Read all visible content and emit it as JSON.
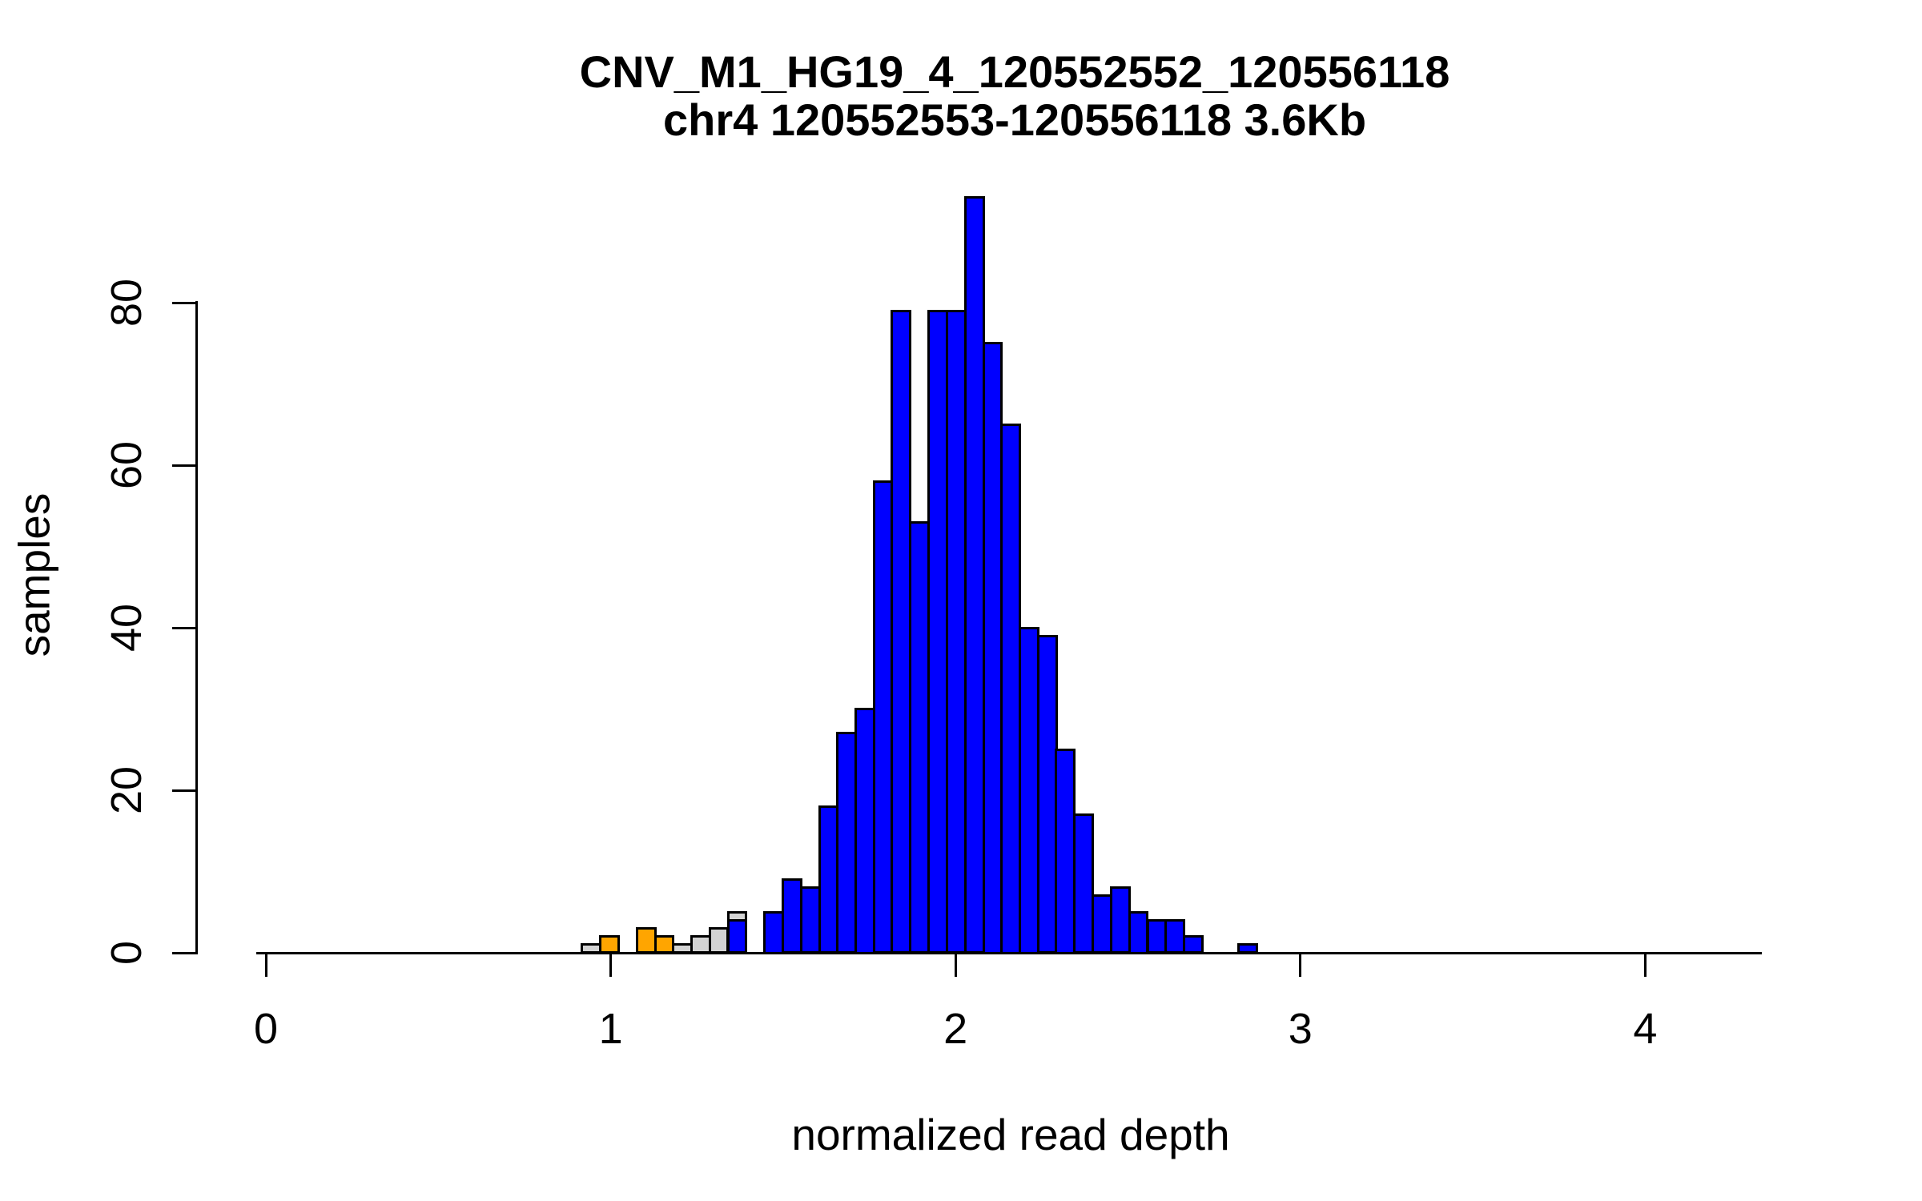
{
  "figure": {
    "title_line1": "CNV_M1_HG19_4_120552552_120556118",
    "title_line2": "chr4 120552553-120556118 3.6Kb"
  },
  "chart_data": {
    "type": "bar",
    "subtype": "stacked-histogram",
    "title": "CNV_M1_HG19_4_120552552_120556118",
    "subtitle": "chr4 120552553-120556118 3.6Kb",
    "xlabel": "normalized read depth",
    "ylabel": "samples",
    "x_ticks": [
      0,
      1,
      2,
      3,
      4
    ],
    "y_ticks": [
      0,
      20,
      40,
      60,
      80
    ],
    "xlim": [
      -0.03,
      4.34
    ],
    "ylim": [
      0,
      93
    ],
    "grid": false,
    "legend": false,
    "bin_width": 0.053,
    "series_colors": {
      "blue": "#0000FF",
      "orange": "#FFA500",
      "gray": "#D3D3D3"
    },
    "bar_border_color": "#000000",
    "bins": [
      {
        "start": 0.917,
        "segments": [
          {
            "color": "gray",
            "count": 1
          }
        ]
      },
      {
        "start": 0.97,
        "segments": [
          {
            "color": "orange",
            "count": 2
          }
        ]
      },
      {
        "start": 1.076,
        "segments": [
          {
            "color": "orange",
            "count": 3
          }
        ]
      },
      {
        "start": 1.129,
        "segments": [
          {
            "color": "orange",
            "count": 2
          }
        ]
      },
      {
        "start": 1.182,
        "segments": [
          {
            "color": "gray",
            "count": 1
          }
        ]
      },
      {
        "start": 1.234,
        "segments": [
          {
            "color": "gray",
            "count": 2
          }
        ]
      },
      {
        "start": 1.287,
        "segments": [
          {
            "color": "gray",
            "count": 3
          }
        ]
      },
      {
        "start": 1.34,
        "segments": [
          {
            "color": "blue",
            "count": 4
          },
          {
            "color": "gray",
            "count": 1
          }
        ]
      },
      {
        "start": 1.446,
        "segments": [
          {
            "color": "blue",
            "count": 5
          }
        ]
      },
      {
        "start": 1.499,
        "segments": [
          {
            "color": "blue",
            "count": 9
          }
        ]
      },
      {
        "start": 1.552,
        "segments": [
          {
            "color": "blue",
            "count": 8
          }
        ]
      },
      {
        "start": 1.605,
        "segments": [
          {
            "color": "blue",
            "count": 18
          }
        ]
      },
      {
        "start": 1.658,
        "segments": [
          {
            "color": "blue",
            "count": 27
          }
        ]
      },
      {
        "start": 1.711,
        "segments": [
          {
            "color": "blue",
            "count": 30
          }
        ]
      },
      {
        "start": 1.763,
        "segments": [
          {
            "color": "blue",
            "count": 58
          }
        ]
      },
      {
        "start": 1.816,
        "segments": [
          {
            "color": "blue",
            "count": 79
          }
        ]
      },
      {
        "start": 1.869,
        "segments": [
          {
            "color": "blue",
            "count": 53
          }
        ]
      },
      {
        "start": 1.922,
        "segments": [
          {
            "color": "blue",
            "count": 79
          }
        ]
      },
      {
        "start": 1.975,
        "segments": [
          {
            "color": "blue",
            "count": 79
          }
        ]
      },
      {
        "start": 2.028,
        "segments": [
          {
            "color": "blue",
            "count": 93
          }
        ]
      },
      {
        "start": 2.081,
        "segments": [
          {
            "color": "blue",
            "count": 75
          }
        ]
      },
      {
        "start": 2.134,
        "segments": [
          {
            "color": "blue",
            "count": 65
          }
        ]
      },
      {
        "start": 2.187,
        "segments": [
          {
            "color": "blue",
            "count": 40
          }
        ]
      },
      {
        "start": 2.24,
        "segments": [
          {
            "color": "blue",
            "count": 39
          }
        ]
      },
      {
        "start": 2.292,
        "segments": [
          {
            "color": "blue",
            "count": 25
          }
        ]
      },
      {
        "start": 2.345,
        "segments": [
          {
            "color": "blue",
            "count": 17
          }
        ]
      },
      {
        "start": 2.398,
        "segments": [
          {
            "color": "blue",
            "count": 7
          }
        ]
      },
      {
        "start": 2.451,
        "segments": [
          {
            "color": "blue",
            "count": 8
          }
        ]
      },
      {
        "start": 2.504,
        "segments": [
          {
            "color": "blue",
            "count": 5
          }
        ]
      },
      {
        "start": 2.557,
        "segments": [
          {
            "color": "blue",
            "count": 4
          }
        ]
      },
      {
        "start": 2.61,
        "segments": [
          {
            "color": "blue",
            "count": 4
          }
        ]
      },
      {
        "start": 2.663,
        "segments": [
          {
            "color": "blue",
            "count": 2
          }
        ]
      },
      {
        "start": 2.821,
        "segments": [
          {
            "color": "blue",
            "count": 1
          }
        ]
      }
    ]
  }
}
